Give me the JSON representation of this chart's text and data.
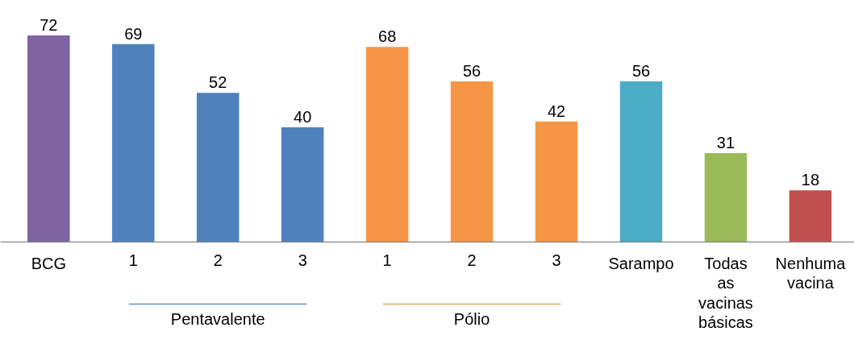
{
  "chart_data": {
    "type": "bar",
    "categories": [
      "BCG",
      "1",
      "2",
      "3",
      "1",
      "2",
      "3",
      "Sarampo",
      "Todas as vacinas básicas",
      "Nenhuma vacina"
    ],
    "values": [
      72,
      69,
      52,
      40,
      68,
      56,
      42,
      56,
      31,
      18
    ],
    "colors": [
      "#8064a2",
      "#4f81bd",
      "#4f81bd",
      "#4f81bd",
      "#f79646",
      "#f79646",
      "#f79646",
      "#4bacc6",
      "#9bbb59",
      "#c0504d"
    ],
    "data_labels": true,
    "annotations": [
      "Pentavalente",
      "Pólio"
    ]
  }
}
